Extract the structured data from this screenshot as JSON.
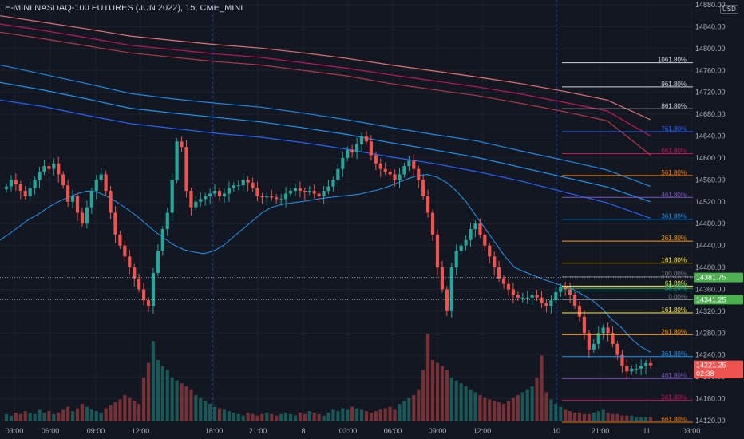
{
  "header": {
    "title": "E-MINI NASDAQ-100 FUTURES (JUN 2022), 15, CME_MINI",
    "currency": "USD"
  },
  "colors": {
    "bg": "#131722",
    "up": "#26a69a",
    "down": "#ef5350",
    "grid": "#1e222d"
  },
  "chart_data": {
    "type": "candlestick",
    "title": "E-MINI NASDAQ-100 FUTURES (JUN 2022), 15, CME_MINI",
    "ylim": [
      14110,
      14880
    ],
    "y_ticks": [
      14120,
      14160,
      14200,
      14240,
      14280,
      14320,
      14360,
      14400,
      14440,
      14480,
      14520,
      14560,
      14600,
      14640,
      14680,
      14720,
      14760,
      14800,
      14840,
      14880
    ],
    "x_ticks": [
      "03:00",
      "06:00",
      "09:00",
      "12:00",
      "18:00",
      "21:00",
      "8",
      "03:00",
      "06:00",
      "09:00",
      "12:00",
      "10",
      "21:00",
      "11",
      "03:00"
    ],
    "price_labels": [
      {
        "text": "14381.75",
        "value": 14381.75,
        "color": "#4caf50"
      },
      {
        "text": "14341.25",
        "value": 14341.25,
        "color": "#4caf50"
      },
      {
        "text": "14221.25",
        "value": 14221.25,
        "color": "#ef5350"
      },
      {
        "text": "02:38",
        "value": 14206,
        "color": "#ef5350"
      }
    ],
    "closes": [
      14548,
      14560,
      14552,
      14540,
      14530,
      14545,
      14560,
      14575,
      14585,
      14580,
      14590,
      14570,
      14550,
      14520,
      14530,
      14500,
      14480,
      14510,
      14540,
      14560,
      14570,
      14540,
      14500,
      14460,
      14440,
      14420,
      14400,
      14380,
      14360,
      14340,
      14330,
      14390,
      14430,
      14470,
      14500,
      14560,
      14630,
      14620,
      14540,
      14510,
      14520,
      14525,
      14530,
      14535,
      14540,
      14530,
      14535,
      14545,
      14550,
      14550,
      14560,
      14555,
      14545,
      14530,
      14528,
      14530,
      14528,
      14525,
      14525,
      14535,
      14540,
      14545,
      14540,
      14538,
      14540,
      14535,
      14530,
      14540,
      14548,
      14560,
      14580,
      14600,
      14615,
      14610,
      14625,
      14640,
      14630,
      14605,
      14590,
      14580,
      14575,
      14570,
      14560,
      14570,
      14585,
      14595,
      14580,
      14560,
      14530,
      14500,
      14460,
      14400,
      14360,
      14320,
      14400,
      14430,
      14440,
      14450,
      14470,
      14480,
      14460,
      14440,
      14420,
      14400,
      14380,
      14370,
      14360,
      14350,
      14345,
      14345,
      14345,
      14350,
      14345,
      14335,
      14330,
      14340,
      14355,
      14365,
      14360,
      14350,
      14330,
      14310,
      14280,
      14250,
      14260,
      14280,
      14290,
      14280,
      14260,
      14240,
      14220,
      14210,
      14215,
      14215,
      14220,
      14225,
      14221
    ],
    "volume": [
      5,
      4,
      6,
      5,
      7,
      6,
      5,
      8,
      6,
      7,
      5,
      6,
      8,
      10,
      7,
      9,
      12,
      10,
      8,
      7,
      6,
      9,
      11,
      13,
      15,
      18,
      16,
      14,
      12,
      30,
      40,
      55,
      42,
      38,
      35,
      30,
      28,
      26,
      24,
      22,
      18,
      16,
      14,
      12,
      10,
      9,
      8,
      7,
      6,
      5,
      4,
      6,
      5,
      4,
      5,
      6,
      5,
      4,
      5,
      6,
      5,
      4,
      6,
      5,
      7,
      6,
      5,
      4,
      6,
      8,
      7,
      9,
      8,
      10,
      9,
      8,
      7,
      6,
      7,
      8,
      9,
      10,
      8,
      12,
      14,
      16,
      18,
      22,
      35,
      60,
      42,
      40,
      38,
      35,
      30,
      28,
      26,
      24,
      22,
      20,
      18,
      16,
      15,
      14,
      13,
      12,
      14,
      16,
      18,
      20,
      22,
      24,
      30,
      45,
      20,
      15,
      12,
      10,
      8,
      7,
      6,
      6,
      5,
      5,
      6,
      7,
      8,
      6,
      5,
      5,
      4,
      4,
      4,
      3,
      3,
      3,
      3
    ],
    "ema_fast": [
      14450,
      14462,
      14475,
      14488,
      14498,
      14510,
      14520,
      14528,
      14535,
      14540,
      14538,
      14530,
      14520,
      14508,
      14495,
      14480,
      14465,
      14452,
      14440,
      14432,
      14428,
      14425,
      14430,
      14440,
      14455,
      14470,
      14485,
      14500,
      14510,
      14515,
      14518,
      14520,
      14523,
      14526,
      14528,
      14530,
      14532,
      14534,
      14538,
      14542,
      14548,
      14555,
      14562,
      14568,
      14570,
      14565,
      14555,
      14540,
      14520,
      14495,
      14470,
      14445,
      14420,
      14400,
      14392,
      14385,
      14378,
      14372,
      14366,
      14360,
      14350,
      14340,
      14325,
      14305,
      14290,
      14270,
      14255,
      14245
    ],
    "ema_bands": [
      {
        "color": "#2962ff",
        "values": [
          14706,
          14694,
          14678,
          14663,
          14654,
          14645,
          14638,
          14628,
          14616,
          14602,
          14590,
          14575,
          14558,
          14538,
          14518,
          14490
        ]
      },
      {
        "color": "#2196f3",
        "values": [
          14738,
          14724,
          14708,
          14691,
          14682,
          14674,
          14666,
          14655,
          14643,
          14628,
          14615,
          14601,
          14583,
          14565,
          14547,
          14520
        ]
      },
      {
        "color": "#1e88e5",
        "values": [
          14770,
          14753,
          14736,
          14718,
          14708,
          14700,
          14693,
          14682,
          14670,
          14656,
          14643,
          14631,
          14613,
          14596,
          14578,
          14548
        ]
      },
      {
        "color": "#b23a48",
        "values": [
          14830,
          14818,
          14805,
          14792,
          14784,
          14776,
          14770,
          14760,
          14750,
          14736,
          14725,
          14714,
          14700,
          14685,
          14668,
          14605
        ]
      },
      {
        "color": "#c2185b",
        "values": [
          14845,
          14833,
          14820,
          14806,
          14798,
          14790,
          14784,
          14774,
          14764,
          14752,
          14741,
          14730,
          14717,
          14702,
          14686,
          14640
        ]
      },
      {
        "color": "#e57373",
        "values": [
          14860,
          14848,
          14836,
          14823,
          14815,
          14807,
          14801,
          14792,
          14782,
          14770,
          14759,
          14748,
          14736,
          14722,
          14706,
          14670
        ]
      }
    ],
    "fib_upper": [
      {
        "label": "1061.80%",
        "value": 14774,
        "color": "#d1d4dc"
      },
      {
        "label": "961.80%",
        "value": 14730,
        "color": "#d1d4dc"
      },
      {
        "label": "861.80%",
        "value": 14690,
        "color": "#d1d4dc"
      },
      {
        "label": "761.80%",
        "value": 14648,
        "color": "#2962ff"
      },
      {
        "label": "661.80%",
        "value": 14608,
        "color": "#c2185b"
      },
      {
        "label": "561.80%",
        "value": 14568,
        "color": "#f57c00"
      },
      {
        "label": "461.80%",
        "value": 14528,
        "color": "#7e57c2"
      },
      {
        "label": "361.80%",
        "value": 14488,
        "color": "#2196f3"
      },
      {
        "label": "261.80%",
        "value": 14448,
        "color": "#ff9800"
      },
      {
        "label": "161.80%",
        "value": 14408,
        "color": "#ffeb3b"
      },
      {
        "label": "100.00%",
        "value": 14383,
        "color": "#787b86"
      },
      {
        "label": "61.80%",
        "value": 14366,
        "color": "#ffeb3b"
      },
      {
        "label": "50.00%",
        "value": 14362,
        "color": "#4caf50"
      },
      {
        "label": "38.20%",
        "value": 14357,
        "color": "#26a69a"
      },
      {
        "label": "0.00%",
        "value": 14341,
        "color": "#787b86"
      },
      {
        "label": "161.80%",
        "value": 14317,
        "color": "#ffeb3b"
      },
      {
        "label": "261.80%",
        "value": 14277,
        "color": "#ff9800"
      },
      {
        "label": "361.80%",
        "value": 14237,
        "color": "#2196f3"
      },
      {
        "label": "461.80%",
        "value": 14197,
        "color": "#7e57c2"
      },
      {
        "label": "561.80%",
        "value": 14157,
        "color": "#c2185b"
      },
      {
        "label": "661.80%",
        "value": 14117,
        "color": "#f57c00"
      }
    ]
  }
}
